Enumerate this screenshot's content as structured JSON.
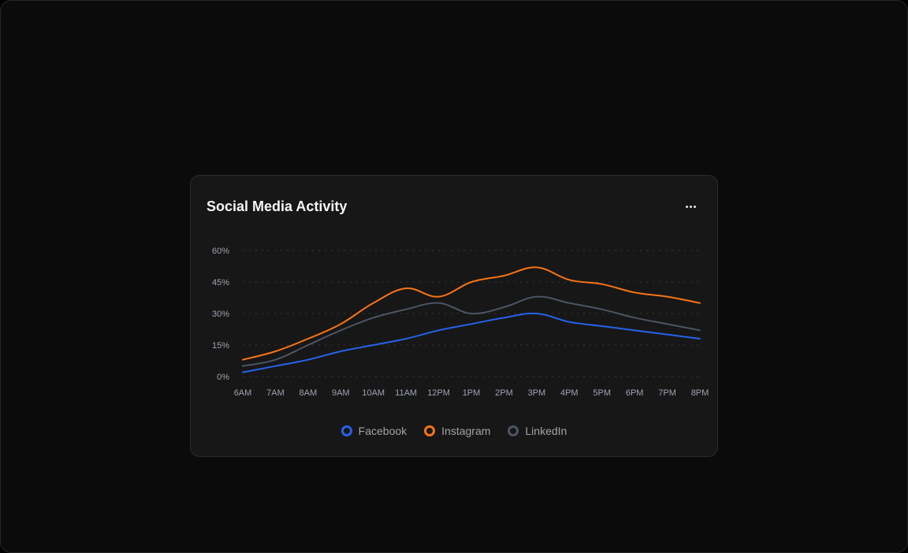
{
  "card": {
    "title": "Social Media Activity",
    "menu_icon": "ellipsis-icon"
  },
  "chart_data": {
    "type": "line",
    "title": "Social Media Activity",
    "x": [
      "6AM",
      "7AM",
      "8AM",
      "9AM",
      "10AM",
      "11AM",
      "12PM",
      "1PM",
      "2PM",
      "3PM",
      "4PM",
      "5PM",
      "6PM",
      "7PM",
      "8PM"
    ],
    "y_ticks": [
      0,
      15,
      30,
      45,
      60
    ],
    "y_tick_labels": [
      "0%",
      "15%",
      "30%",
      "45%",
      "60%"
    ],
    "ylim": [
      0,
      60
    ],
    "grid": true,
    "grid_style": "dotted",
    "legend_position": "bottom-center",
    "series": [
      {
        "name": "Facebook",
        "color": "#2563eb",
        "values": [
          2,
          5,
          8,
          12,
          15,
          18,
          22,
          25,
          28,
          30,
          26,
          24,
          22,
          20,
          18
        ]
      },
      {
        "name": "Instagram",
        "color": "#f97316",
        "values": [
          8,
          12,
          18,
          25,
          35,
          42,
          38,
          45,
          48,
          52,
          46,
          44,
          40,
          38,
          35
        ]
      },
      {
        "name": "LinkedIn",
        "color": "#4b5563",
        "values": [
          5,
          8,
          15,
          22,
          28,
          32,
          35,
          30,
          33,
          38,
          35,
          32,
          28,
          25,
          22
        ]
      }
    ]
  }
}
